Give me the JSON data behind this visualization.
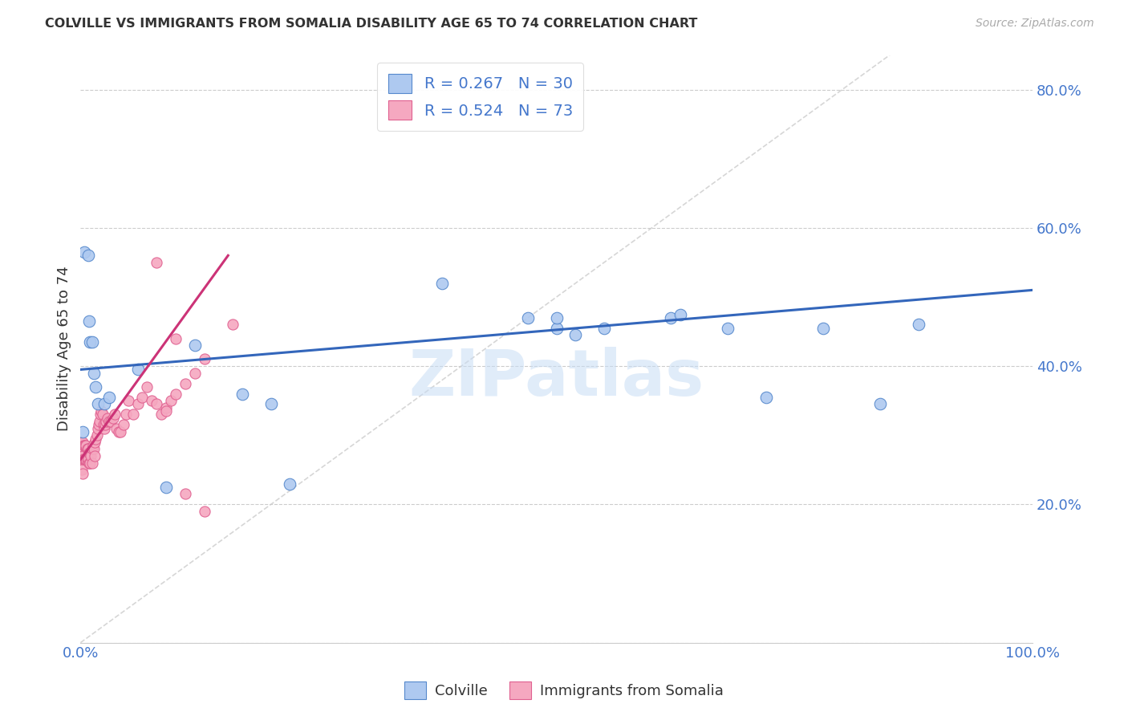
{
  "title": "COLVILLE VS IMMIGRANTS FROM SOMALIA DISABILITY AGE 65 TO 74 CORRELATION CHART",
  "source": "Source: ZipAtlas.com",
  "ylabel": "Disability Age 65 to 74",
  "xlim": [
    0,
    1.0
  ],
  "ylim": [
    0,
    0.85
  ],
  "colville_color": "#aec9f0",
  "somalia_color": "#f5a8c0",
  "colville_edge_color": "#5588cc",
  "somalia_edge_color": "#e06090",
  "colville_line_color": "#3366bb",
  "somalia_line_color": "#cc3377",
  "watermark": "ZIPatlas",
  "legend_R1": "0.267",
  "legend_N1": "30",
  "legend_R2": "0.524",
  "legend_N2": "73",
  "colville_x": [
    0.002,
    0.004,
    0.008,
    0.009,
    0.01,
    0.012,
    0.014,
    0.016,
    0.018,
    0.025,
    0.03,
    0.06,
    0.09,
    0.12,
    0.17,
    0.2,
    0.22,
    0.38,
    0.47,
    0.5,
    0.52,
    0.62,
    0.63,
    0.68,
    0.72,
    0.78,
    0.84,
    0.88,
    0.5,
    0.55
  ],
  "colville_y": [
    0.305,
    0.565,
    0.56,
    0.465,
    0.435,
    0.435,
    0.39,
    0.37,
    0.345,
    0.345,
    0.355,
    0.395,
    0.225,
    0.43,
    0.36,
    0.345,
    0.23,
    0.52,
    0.47,
    0.455,
    0.445,
    0.47,
    0.475,
    0.455,
    0.355,
    0.455,
    0.345,
    0.46,
    0.47,
    0.455
  ],
  "somalia_x": [
    0.0,
    0.0,
    0.001,
    0.001,
    0.001,
    0.002,
    0.002,
    0.002,
    0.003,
    0.003,
    0.004,
    0.004,
    0.005,
    0.005,
    0.006,
    0.006,
    0.007,
    0.007,
    0.008,
    0.008,
    0.009,
    0.009,
    0.01,
    0.01,
    0.011,
    0.012,
    0.012,
    0.013,
    0.014,
    0.015,
    0.015,
    0.016,
    0.017,
    0.018,
    0.019,
    0.02,
    0.021,
    0.022,
    0.023,
    0.024,
    0.025,
    0.026,
    0.027,
    0.028,
    0.03,
    0.032,
    0.034,
    0.036,
    0.038,
    0.04,
    0.042,
    0.045,
    0.048,
    0.05,
    0.055,
    0.06,
    0.065,
    0.07,
    0.075,
    0.08,
    0.085,
    0.09,
    0.095,
    0.1,
    0.11,
    0.12,
    0.13,
    0.08,
    0.09,
    0.1,
    0.11,
    0.13,
    0.16
  ],
  "somalia_y": [
    0.29,
    0.265,
    0.29,
    0.27,
    0.25,
    0.29,
    0.27,
    0.245,
    0.285,
    0.265,
    0.285,
    0.265,
    0.285,
    0.265,
    0.285,
    0.265,
    0.28,
    0.265,
    0.28,
    0.265,
    0.275,
    0.26,
    0.275,
    0.26,
    0.27,
    0.28,
    0.26,
    0.285,
    0.28,
    0.29,
    0.27,
    0.295,
    0.3,
    0.31,
    0.315,
    0.32,
    0.33,
    0.335,
    0.33,
    0.315,
    0.31,
    0.315,
    0.32,
    0.325,
    0.32,
    0.32,
    0.325,
    0.33,
    0.31,
    0.305,
    0.305,
    0.315,
    0.33,
    0.35,
    0.33,
    0.345,
    0.355,
    0.37,
    0.35,
    0.345,
    0.33,
    0.34,
    0.35,
    0.36,
    0.375,
    0.39,
    0.41,
    0.55,
    0.335,
    0.44,
    0.215,
    0.19,
    0.46
  ],
  "colville_trendline_x": [
    0.0,
    1.0
  ],
  "colville_trendline_y": [
    0.395,
    0.51
  ],
  "somalia_trendline_x": [
    0.0,
    0.155
  ],
  "somalia_trendline_y": [
    0.265,
    0.56
  ]
}
